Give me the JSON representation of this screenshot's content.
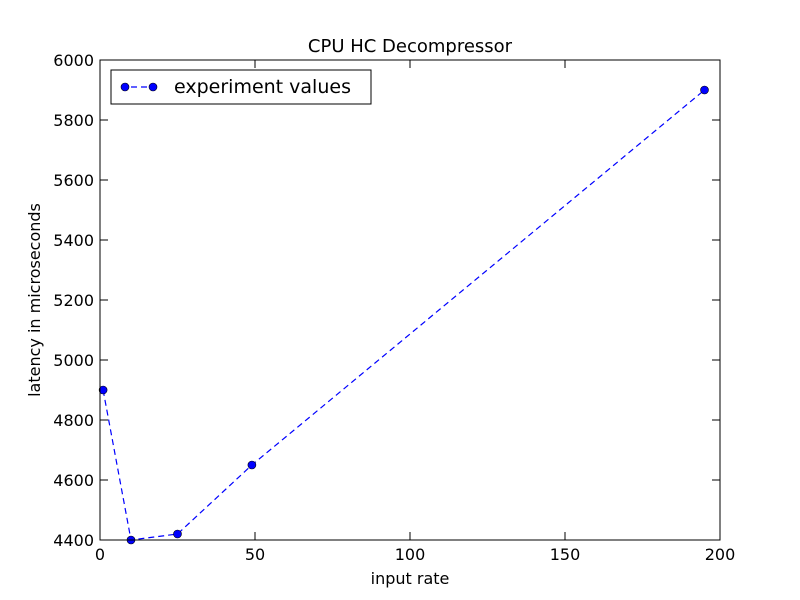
{
  "chart_data": {
    "type": "line",
    "title": "CPU HC Decompressor",
    "xlabel": "input rate",
    "ylabel": "latency in microseconds",
    "xlim": [
      0,
      200
    ],
    "ylim": [
      4400,
      6000
    ],
    "x_ticks": [
      0,
      50,
      100,
      150,
      200
    ],
    "y_ticks": [
      4400,
      4600,
      4800,
      5000,
      5200,
      5400,
      5600,
      5800,
      6000
    ],
    "grid": false,
    "legend_position": "top-left",
    "series": [
      {
        "name": "experiment values",
        "color": "#0000ff",
        "line_style": "dashed",
        "marker": "circle",
        "x": [
          1,
          10,
          25,
          49,
          195
        ],
        "y": [
          4900,
          4400,
          4420,
          4650,
          5900
        ]
      }
    ]
  }
}
